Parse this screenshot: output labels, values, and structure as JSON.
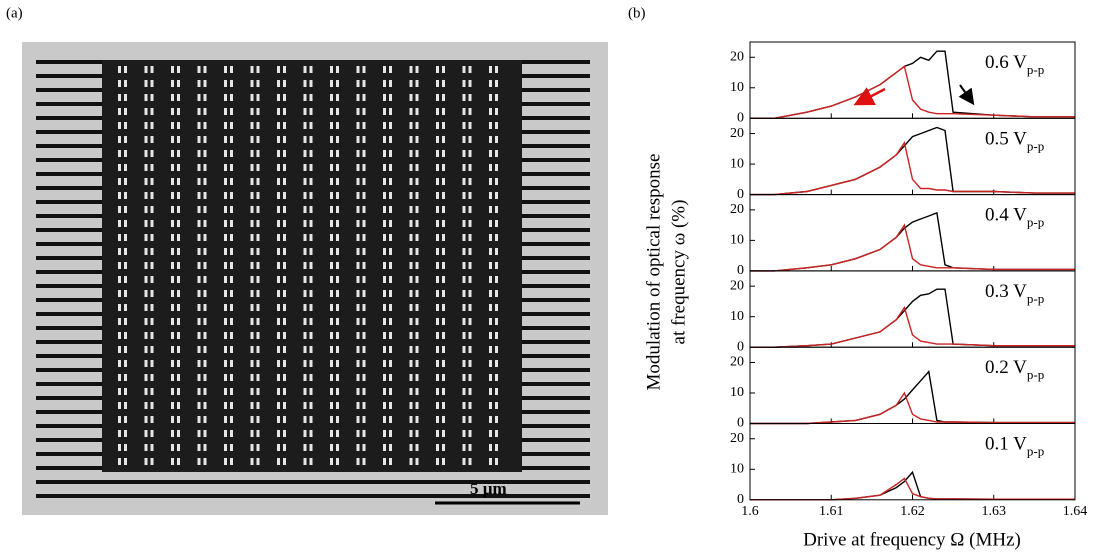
{
  "panel_labels": [
    "(a)",
    "(b)"
  ],
  "sem_image": {
    "scale_bar": "5 µm"
  },
  "y_axis_label": [
    "Modulation of optical response",
    "at frequency ω (%)"
  ],
  "x_axis_label": "Drive at frequency Ω (MHz)",
  "chart_data": [
    {
      "type": "line",
      "annotation": {
        "text": "0.6 V",
        "subscript": "p-p"
      },
      "x": [
        1.6,
        1.603,
        1.607,
        1.61,
        1.613,
        1.616,
        1.618,
        1.619,
        1.62,
        1.621,
        1.622,
        1.623,
        1.624,
        1.625,
        1.63,
        1.635,
        1.64
      ],
      "series": [
        {
          "color": "#000000",
          "values": [
            0,
            0,
            2,
            4,
            7,
            11,
            15,
            17,
            18,
            20,
            19,
            22,
            22,
            2,
            1,
            0.5,
            0.5
          ]
        },
        {
          "color": "#cc2222",
          "values": [
            0,
            0,
            2,
            4,
            7,
            11,
            15,
            17,
            6,
            3,
            2,
            1.5,
            1.5,
            1.5,
            1,
            0.5,
            0.5
          ]
        }
      ],
      "xlim": [
        1.6,
        1.64
      ],
      "xticks": [
        1.6,
        1.61,
        1.62,
        1.63,
        1.64
      ],
      "xtick_labels": false,
      "ylim": [
        0,
        25
      ],
      "yticks": [
        0,
        10,
        20
      ]
    },
    {
      "type": "line",
      "annotation": {
        "text": "0.5 V",
        "subscript": "p-p"
      },
      "x": [
        1.6,
        1.603,
        1.607,
        1.61,
        1.613,
        1.616,
        1.618,
        1.619,
        1.62,
        1.621,
        1.622,
        1.623,
        1.624,
        1.625,
        1.63,
        1.635,
        1.64
      ],
      "series": [
        {
          "color": "#000000",
          "values": [
            0,
            0,
            1,
            3,
            5,
            9,
            13,
            16,
            19,
            20,
            21,
            22,
            21,
            1,
            1,
            0.5,
            0.5
          ]
        },
        {
          "color": "#cc2222",
          "values": [
            0,
            0,
            1,
            3,
            5,
            9,
            13,
            17,
            5,
            2,
            2,
            1.5,
            1.5,
            1,
            1,
            0.5,
            0.5
          ]
        }
      ],
      "xlim": [
        1.6,
        1.64
      ],
      "xticks": [
        1.6,
        1.61,
        1.62,
        1.63,
        1.64
      ],
      "xtick_labels": false,
      "ylim": [
        0,
        25
      ],
      "yticks": [
        0,
        10,
        20
      ]
    },
    {
      "type": "line",
      "annotation": {
        "text": "0.4 V",
        "subscript": "p-p"
      },
      "x": [
        1.6,
        1.603,
        1.607,
        1.61,
        1.613,
        1.616,
        1.618,
        1.619,
        1.62,
        1.621,
        1.622,
        1.623,
        1.624,
        1.625,
        1.63,
        1.635,
        1.64
      ],
      "series": [
        {
          "color": "#000000",
          "values": [
            0,
            0,
            1,
            2,
            4,
            7,
            11,
            14,
            16,
            17,
            18,
            19,
            2,
            1,
            0.5,
            0.5,
            0.5
          ]
        },
        {
          "color": "#cc2222",
          "values": [
            0,
            0,
            1,
            2,
            4,
            7,
            11,
            15,
            4,
            2,
            1.5,
            1,
            1,
            1,
            0.5,
            0.5,
            0.5
          ]
        }
      ],
      "xlim": [
        1.6,
        1.64
      ],
      "xticks": [
        1.6,
        1.61,
        1.62,
        1.63,
        1.64
      ],
      "xtick_labels": false,
      "ylim": [
        0,
        25
      ],
      "yticks": [
        0,
        10,
        20
      ]
    },
    {
      "type": "line",
      "annotation": {
        "text": "0.3 V",
        "subscript": "p-p"
      },
      "x": [
        1.6,
        1.603,
        1.607,
        1.61,
        1.613,
        1.616,
        1.618,
        1.619,
        1.62,
        1.621,
        1.622,
        1.623,
        1.624,
        1.625,
        1.63,
        1.635,
        1.64
      ],
      "series": [
        {
          "color": "#000000",
          "values": [
            0,
            0,
            0.5,
            1,
            3,
            5,
            9,
            12,
            15,
            17,
            17.5,
            19,
            19,
            1,
            0.5,
            0.5,
            0.5
          ]
        },
        {
          "color": "#cc2222",
          "values": [
            0,
            0,
            0.5,
            1,
            3,
            5,
            9,
            13,
            4,
            2,
            1.5,
            1,
            1,
            1,
            0.5,
            0.5,
            0.5
          ]
        }
      ],
      "xlim": [
        1.6,
        1.64
      ],
      "xticks": [
        1.6,
        1.61,
        1.62,
        1.63,
        1.64
      ],
      "xtick_labels": false,
      "ylim": [
        0,
        25
      ],
      "yticks": [
        0,
        10,
        20
      ]
    },
    {
      "type": "line",
      "annotation": {
        "text": "0.2 V",
        "subscript": "p-p"
      },
      "x": [
        1.6,
        1.603,
        1.607,
        1.61,
        1.613,
        1.616,
        1.618,
        1.619,
        1.62,
        1.621,
        1.622,
        1.623,
        1.624,
        1.625,
        1.63,
        1.635,
        1.64
      ],
      "series": [
        {
          "color": "#000000",
          "values": [
            0,
            0,
            0,
            0.5,
            1,
            3,
            6,
            8,
            11,
            14,
            17,
            1,
            0.5,
            0.5,
            0.3,
            0.3,
            0.3
          ]
        },
        {
          "color": "#cc2222",
          "values": [
            0,
            0,
            0,
            0.5,
            1,
            3,
            6,
            10,
            3,
            1.5,
            1,
            0.5,
            0.5,
            0.5,
            0.3,
            0.3,
            0.3
          ]
        }
      ],
      "xlim": [
        1.6,
        1.64
      ],
      "xticks": [
        1.6,
        1.61,
        1.62,
        1.63,
        1.64
      ],
      "xtick_labels": false,
      "ylim": [
        0,
        25
      ],
      "yticks": [
        0,
        10,
        20
      ]
    },
    {
      "type": "line",
      "annotation": {
        "text": "0.1 V",
        "subscript": "p-p"
      },
      "x": [
        1.6,
        1.603,
        1.607,
        1.61,
        1.613,
        1.616,
        1.618,
        1.619,
        1.62,
        1.621,
        1.622,
        1.623,
        1.624,
        1.625,
        1.63,
        1.635,
        1.64
      ],
      "series": [
        {
          "color": "#000000",
          "values": [
            0,
            0,
            0,
            0,
            0.5,
            1.5,
            4,
            6,
            9,
            1,
            0.5,
            0.3,
            0.3,
            0.3,
            0.2,
            0.2,
            0.2
          ]
        },
        {
          "color": "#cc2222",
          "values": [
            0,
            0,
            0,
            0,
            0.5,
            1.5,
            5,
            7,
            2,
            1,
            0.5,
            0.3,
            0.3,
            0.3,
            0.2,
            0.2,
            0.2
          ]
        }
      ],
      "xlim": [
        1.6,
        1.64
      ],
      "xticks": [
        1.6,
        1.61,
        1.62,
        1.63,
        1.64
      ],
      "xtick_labels": true,
      "ylim": [
        0,
        25
      ],
      "yticks": [
        0,
        10,
        20
      ]
    }
  ]
}
